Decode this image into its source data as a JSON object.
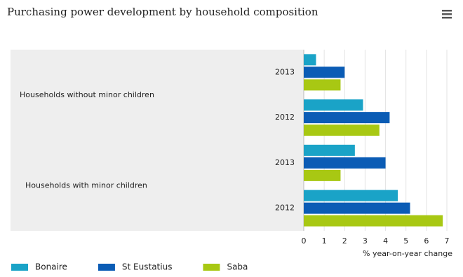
{
  "chart_data": {
    "type": "grouped-hbar",
    "title": "Purchasing power development by household composition",
    "groups": [
      {
        "name": "Households without minor children",
        "categories": [
          "2013",
          "2012"
        ]
      },
      {
        "name": "Households with minor children",
        "categories": [
          "2013",
          "2012"
        ]
      }
    ],
    "series": [
      {
        "name": "Bonaire",
        "color": "#1aa3c7",
        "values": [
          0.6,
          2.9,
          2.5,
          4.6
        ]
      },
      {
        "name": "St Eustatius",
        "color": "#0b5cb5",
        "values": [
          2.0,
          4.2,
          4.0,
          5.2
        ]
      },
      {
        "name": "Saba",
        "color": "#a8c813",
        "values": [
          1.8,
          3.7,
          1.8,
          6.8
        ]
      }
    ],
    "xlabel": "% year-on-year change",
    "xlim": [
      0,
      7
    ],
    "xticks": [
      0,
      1,
      2,
      3,
      4,
      5,
      6,
      7
    ],
    "grid": true
  }
}
